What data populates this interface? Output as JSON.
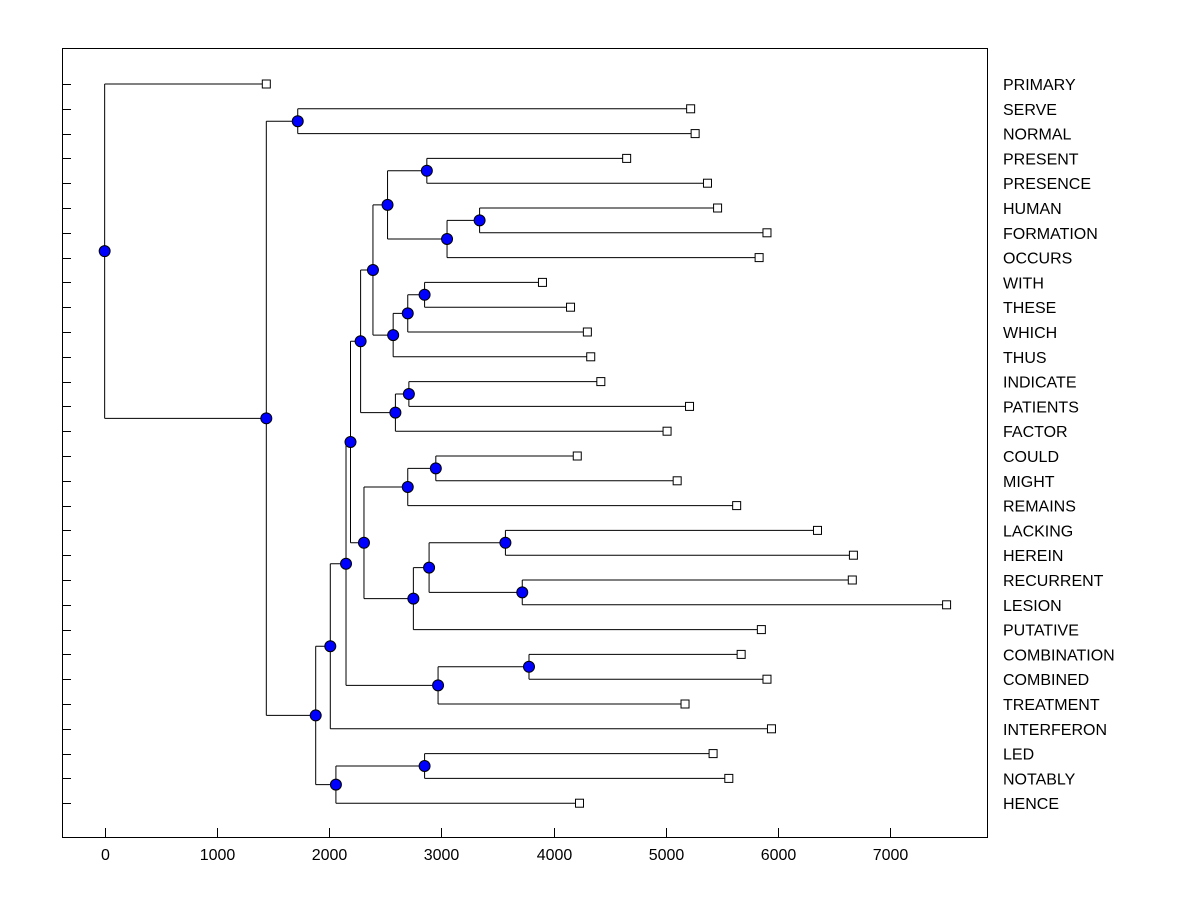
{
  "chart_data": {
    "type": "dendrogram",
    "orientation": "horizontal",
    "xlabel": "",
    "ylabel": "",
    "xlim": [
      -380,
      7860
    ],
    "x_ticks": [
      0,
      1000,
      2000,
      3000,
      4000,
      5000,
      6000,
      7000
    ],
    "x_tick_labels": [
      "0",
      "1000",
      "2000",
      "3000",
      "4000",
      "5000",
      "6000",
      "7000"
    ],
    "colors": {
      "node": "#0000ff",
      "line": "#000000",
      "leaf": "#ffffff"
    },
    "leaves": [
      {
        "label": "PRIMARY",
        "x": 1440
      },
      {
        "label": "SERVE",
        "x": 5220
      },
      {
        "label": "NORMAL",
        "x": 5260
      },
      {
        "label": "PRESENT",
        "x": 4650
      },
      {
        "label": "PRESENCE",
        "x": 5370
      },
      {
        "label": "HUMAN",
        "x": 5460
      },
      {
        "label": "FORMATION",
        "x": 5900
      },
      {
        "label": "OCCURS",
        "x": 5830
      },
      {
        "label": "WITH",
        "x": 3900
      },
      {
        "label": "THESE",
        "x": 4150
      },
      {
        "label": "WHICH",
        "x": 4300
      },
      {
        "label": "THUS",
        "x": 4330
      },
      {
        "label": "INDICATE",
        "x": 4420
      },
      {
        "label": "PATIENTS",
        "x": 5210
      },
      {
        "label": "FACTOR",
        "x": 5010
      },
      {
        "label": "COULD",
        "x": 4210
      },
      {
        "label": "MIGHT",
        "x": 5100
      },
      {
        "label": "REMAINS",
        "x": 5630
      },
      {
        "label": "LACKING",
        "x": 6350
      },
      {
        "label": "HEREIN",
        "x": 6670
      },
      {
        "label": "RECURRENT",
        "x": 6660
      },
      {
        "label": "LESION",
        "x": 7500
      },
      {
        "label": "PUTATIVE",
        "x": 5850
      },
      {
        "label": "COMBINATION",
        "x": 5670
      },
      {
        "label": "COMBINED",
        "x": 5900
      },
      {
        "label": "TREATMENT",
        "x": 5170
      },
      {
        "label": "INTERFERON",
        "x": 5940
      },
      {
        "label": "LED",
        "x": 5420
      },
      {
        "label": "NOTABLY",
        "x": 5560
      },
      {
        "label": "HENCE",
        "x": 4230
      }
    ],
    "merges": [
      {
        "id": "m1",
        "children": [
          "L1",
          "L2"
        ],
        "x": 1720
      },
      {
        "id": "m2",
        "children": [
          "L3",
          "L4"
        ],
        "x": 2870
      },
      {
        "id": "m3",
        "children": [
          "L5",
          "L6"
        ],
        "x": 3340
      },
      {
        "id": "m4",
        "children": [
          "m3",
          "L7"
        ],
        "x": 3050
      },
      {
        "id": "m5",
        "children": [
          "m2",
          "m4"
        ],
        "x": 2520
      },
      {
        "id": "m6",
        "children": [
          "L8",
          "L9"
        ],
        "x": 2850
      },
      {
        "id": "m7",
        "children": [
          "m6",
          "L10"
        ],
        "x": 2700
      },
      {
        "id": "m8",
        "children": [
          "m7",
          "L11"
        ],
        "x": 2570
      },
      {
        "id": "m9",
        "children": [
          "m5",
          "m8"
        ],
        "x": 2390
      },
      {
        "id": "m10",
        "children": [
          "L12",
          "L13"
        ],
        "x": 2710
      },
      {
        "id": "m11",
        "children": [
          "m10",
          "L14"
        ],
        "x": 2590
      },
      {
        "id": "m12",
        "children": [
          "m9",
          "m11"
        ],
        "x": 2280
      },
      {
        "id": "m13",
        "children": [
          "L15",
          "L16"
        ],
        "x": 2950
      },
      {
        "id": "m14",
        "children": [
          "m13",
          "L17"
        ],
        "x": 2700
      },
      {
        "id": "m15",
        "children": [
          "L18",
          "L19"
        ],
        "x": 3570
      },
      {
        "id": "m16",
        "children": [
          "L20",
          "L21"
        ],
        "x": 3720
      },
      {
        "id": "m17",
        "children": [
          "m15",
          "m16"
        ],
        "x": 2890
      },
      {
        "id": "m18",
        "children": [
          "m17",
          "L22"
        ],
        "x": 2750
      },
      {
        "id": "m19",
        "children": [
          "m14",
          "m18"
        ],
        "x": 2310
      },
      {
        "id": "m20",
        "children": [
          "m12",
          "m19"
        ],
        "x": 2190
      },
      {
        "id": "m21",
        "children": [
          "L23",
          "L24"
        ],
        "x": 3780
      },
      {
        "id": "m22",
        "children": [
          "m21",
          "L25"
        ],
        "x": 2970
      },
      {
        "id": "m23",
        "children": [
          "m20",
          "m22"
        ],
        "x": 2150
      },
      {
        "id": "m24",
        "children": [
          "m23",
          "L26"
        ],
        "x": 2010
      },
      {
        "id": "m25",
        "children": [
          "L27",
          "L28"
        ],
        "x": 2850
      },
      {
        "id": "m26",
        "children": [
          "m25",
          "L29"
        ],
        "x": 2060
      },
      {
        "id": "m27",
        "children": [
          "m24",
          "m26"
        ],
        "x": 1880
      },
      {
        "id": "m28",
        "children": [
          "m1",
          "m27"
        ],
        "x": 1440
      },
      {
        "id": "m29",
        "children": [
          "L0",
          "m28"
        ],
        "x": 0
      }
    ]
  }
}
